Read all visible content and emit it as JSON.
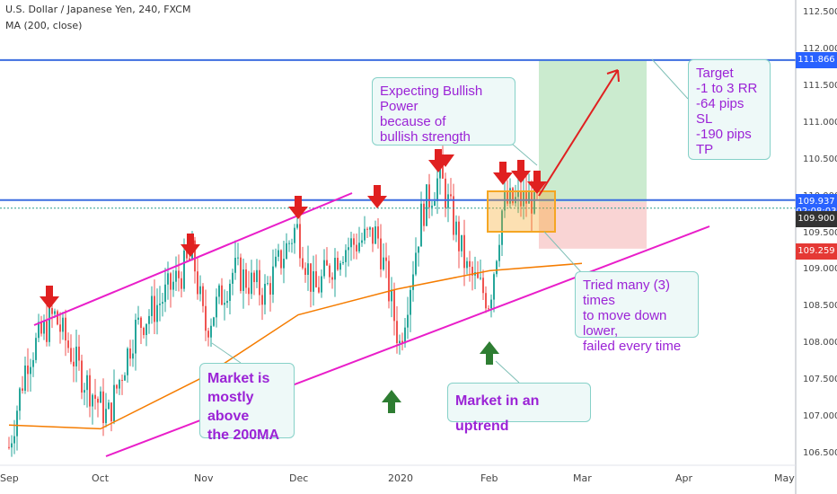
{
  "header": {
    "symbol_line": "U.S. Dollar / Japanese Yen, 240, FXCM",
    "indicator_line": "MA (200, close)"
  },
  "chart_data": {
    "type": "line",
    "title": "U.S. Dollar / Japanese Yen, 240, FXCM",
    "y_ticks": [
      "112.500",
      "112.000",
      "111.500",
      "111.000",
      "110.500",
      "110.000",
      "109.500",
      "109.000",
      "108.500",
      "108.000",
      "107.500",
      "107.000",
      "106.500"
    ],
    "ylim": [
      106.4,
      112.7
    ],
    "x_ticks": [
      "Sep",
      "Oct",
      "Nov",
      "Dec",
      "2020",
      "Feb",
      "Mar",
      "Apr",
      "May"
    ],
    "price_tags": [
      {
        "label": "111.866",
        "value": 111.866,
        "color": "#2962ff"
      },
      {
        "label": "109.937",
        "value": 109.937,
        "color": "#2962ff"
      },
      {
        "label": "02:08:03",
        "value": 109.8,
        "color": "#2962ff"
      },
      {
        "label": "109.900",
        "value": 109.7,
        "color": "#333333"
      },
      {
        "label": "109.259",
        "value": 109.259,
        "color": "#e53935"
      }
    ],
    "series": [
      {
        "name": "MA (200, close)",
        "x": [
          "Sep",
          "Oct",
          "Nov",
          "Dec",
          "2020",
          "Feb",
          "Mar"
        ],
        "values": [
          106.9,
          106.85,
          107.55,
          108.4,
          108.75,
          109.0,
          109.1
        ]
      }
    ],
    "colors": {
      "ma": "#f57c00",
      "trend": "#e91ec9",
      "resistance": "#3d6ee0",
      "arrow_up": "#2e7d32",
      "arrow_down": "#e02020",
      "target_zone": "#b9e4bf",
      "stop_zone": "#f7c6c6",
      "consolidation": "#f5a623"
    }
  },
  "annotations": {
    "bullish": "Expecting Bullish Power\nbecause of\nbullish strength",
    "target": "Target\n-1 to 3 RR\n-64 pips SL\n-190 pips TP",
    "tried": "Tried many (3) times\nto move down lower,\nfailed every time",
    "above_ma": "Market is\nmostly above\nthe 200MA",
    "uptrend": "Market in an uptrend"
  }
}
